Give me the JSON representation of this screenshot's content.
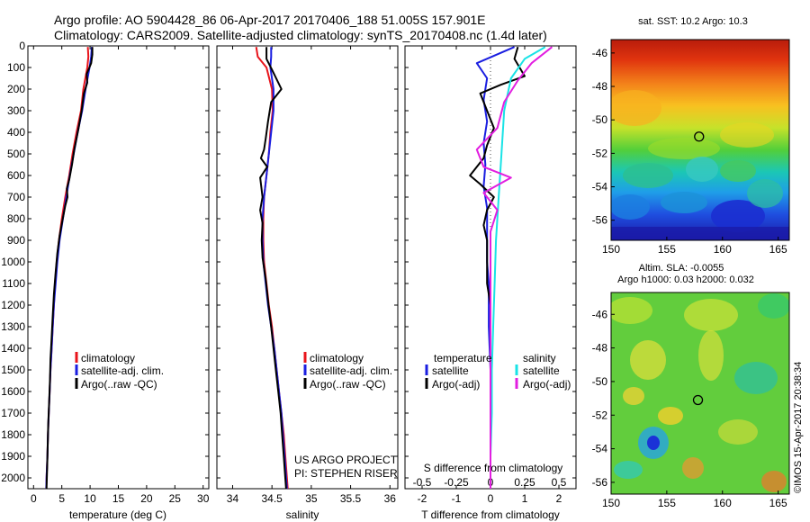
{
  "header": {
    "line1": "Argo profile: AO 5904428_86 06-Apr-2017 20170406_188 51.005S 157.901E",
    "line2": "Climatology: CARS2009. Satellite-adjusted climatology: synTS_20170408.nc (1.4d later)"
  },
  "colors": {
    "climatology": "#e8141b",
    "satellite": "#1a1ee0",
    "argo": "#000000",
    "salinity_satellite": "#19e3e6",
    "salinity_argo": "#e21ee0",
    "marker_circle": "#000000"
  },
  "chart_data": [
    {
      "type": "line",
      "panel": "temperature",
      "xlabel": "temperature (deg C)",
      "ylabel": "",
      "xlim": [
        -1,
        31
      ],
      "ylim": [
        2050,
        0
      ],
      "xticks": [
        "0",
        "5",
        "10",
        "15",
        "20",
        "25",
        "30"
      ],
      "yticks": [
        "0",
        "100",
        "200",
        "300",
        "400",
        "500",
        "600",
        "700",
        "800",
        "900",
        "1000",
        "1100",
        "1200",
        "1300",
        "1400",
        "1500",
        "1600",
        "1700",
        "1800",
        "1900",
        "2000"
      ],
      "legend": [
        "climatology",
        "satellite-adj. clim.",
        "Argo(..raw -QC)"
      ],
      "series": [
        {
          "name": "climatology",
          "color": "#e8141b",
          "points": [
            [
              9.6,
              5
            ],
            [
              9.7,
              50
            ],
            [
              9.5,
              100
            ],
            [
              8.8,
              200
            ],
            [
              8.4,
              300
            ],
            [
              7.6,
              400
            ],
            [
              6.9,
              500
            ],
            [
              6.3,
              600
            ],
            [
              5.6,
              700
            ],
            [
              5.0,
              800
            ],
            [
              4.5,
              900
            ],
            [
              4.1,
              1000
            ],
            [
              3.8,
              1100
            ],
            [
              3.6,
              1200
            ],
            [
              3.4,
              1300
            ],
            [
              3.2,
              1400
            ],
            [
              3.0,
              1500
            ],
            [
              2.85,
              1600
            ],
            [
              2.7,
              1700
            ],
            [
              2.55,
              1800
            ],
            [
              2.45,
              1900
            ],
            [
              2.3,
              2000
            ],
            [
              2.25,
              2050
            ]
          ]
        },
        {
          "name": "satellite-adj. clim.",
          "color": "#1a1ee0",
          "points": [
            [
              10.3,
              5
            ],
            [
              10.2,
              50
            ],
            [
              9.9,
              100
            ],
            [
              9.2,
              200
            ],
            [
              8.6,
              300
            ],
            [
              7.8,
              400
            ],
            [
              7.1,
              500
            ],
            [
              6.4,
              600
            ],
            [
              5.8,
              700
            ],
            [
              5.2,
              800
            ],
            [
              4.6,
              900
            ],
            [
              4.2,
              1000
            ],
            [
              3.9,
              1100
            ],
            [
              3.6,
              1200
            ],
            [
              3.4,
              1300
            ],
            [
              3.2,
              1400
            ],
            [
              3.0,
              1500
            ],
            [
              2.85,
              1600
            ],
            [
              2.7,
              1700
            ],
            [
              2.55,
              1800
            ],
            [
              2.45,
              1900
            ],
            [
              2.3,
              2000
            ],
            [
              2.25,
              2050
            ]
          ]
        },
        {
          "name": "Argo(..raw -QC)",
          "color": "#000000",
          "points": [
            [
              10.4,
              5
            ],
            [
              10.4,
              40
            ],
            [
              10.2,
              80
            ],
            [
              9.4,
              130
            ],
            [
              9.5,
              170
            ],
            [
              8.9,
              220
            ],
            [
              8.5,
              300
            ],
            [
              7.9,
              390
            ],
            [
              7.2,
              480
            ],
            [
              6.8,
              550
            ],
            [
              6.3,
              620
            ],
            [
              5.9,
              660
            ],
            [
              6.0,
              700
            ],
            [
              5.6,
              740
            ],
            [
              5.1,
              810
            ],
            [
              4.6,
              880
            ],
            [
              4.2,
              960
            ],
            [
              3.9,
              1050
            ],
            [
              3.6,
              1150
            ],
            [
              3.4,
              1250
            ],
            [
              3.2,
              1350
            ],
            [
              3.0,
              1450
            ],
            [
              2.9,
              1550
            ],
            [
              2.75,
              1650
            ],
            [
              2.6,
              1750
            ],
            [
              2.5,
              1850
            ],
            [
              2.4,
              1950
            ],
            [
              2.3,
              2050
            ]
          ]
        }
      ]
    },
    {
      "type": "line",
      "panel": "salinity",
      "xlabel": "salinity",
      "ylabel": "",
      "xlim": [
        33.8,
        36.1
      ],
      "ylim": [
        2050,
        0
      ],
      "xticks": [
        "34",
        "34.5",
        "35",
        "35.5",
        "36"
      ],
      "legend": [
        "climatology",
        "satellite-adj. clim.",
        "Argo(..raw -QC)"
      ],
      "annotation": [
        "US ARGO PROJECT",
        "PI: STEPHEN RISER"
      ],
      "series": [
        {
          "name": "climatology",
          "color": "#e8141b",
          "points": [
            [
              34.3,
              5
            ],
            [
              34.32,
              50
            ],
            [
              34.43,
              100
            ],
            [
              34.5,
              200
            ],
            [
              34.51,
              300
            ],
            [
              34.48,
              400
            ],
            [
              34.46,
              500
            ],
            [
              34.43,
              600
            ],
            [
              34.4,
              700
            ],
            [
              34.39,
              800
            ],
            [
              34.39,
              900
            ],
            [
              34.4,
              1000
            ],
            [
              34.43,
              1100
            ],
            [
              34.46,
              1200
            ],
            [
              34.5,
              1300
            ],
            [
              34.53,
              1400
            ],
            [
              34.56,
              1500
            ],
            [
              34.59,
              1600
            ],
            [
              34.62,
              1700
            ],
            [
              34.65,
              1800
            ],
            [
              34.67,
              1900
            ],
            [
              34.69,
              2000
            ],
            [
              34.7,
              2050
            ]
          ]
        },
        {
          "name": "satellite-adj. clim.",
          "color": "#1a1ee0",
          "points": [
            [
              34.49,
              5
            ],
            [
              34.49,
              50
            ],
            [
              34.48,
              100
            ],
            [
              34.52,
              200
            ],
            [
              34.52,
              300
            ],
            [
              34.49,
              400
            ],
            [
              34.46,
              500
            ],
            [
              34.43,
              600
            ],
            [
              34.4,
              700
            ],
            [
              34.38,
              800
            ],
            [
              34.38,
              900
            ],
            [
              34.39,
              1000
            ],
            [
              34.42,
              1100
            ],
            [
              34.45,
              1200
            ],
            [
              34.49,
              1300
            ],
            [
              34.53,
              1400
            ],
            [
              34.56,
              1500
            ],
            [
              34.59,
              1600
            ],
            [
              34.62,
              1700
            ],
            [
              34.64,
              1800
            ],
            [
              34.66,
              1900
            ],
            [
              34.68,
              2000
            ],
            [
              34.69,
              2050
            ]
          ]
        },
        {
          "name": "Argo(..raw -QC)",
          "color": "#000000",
          "points": [
            [
              34.43,
              5
            ],
            [
              34.43,
              60
            ],
            [
              34.5,
              110
            ],
            [
              34.62,
              200
            ],
            [
              34.49,
              260
            ],
            [
              34.45,
              350
            ],
            [
              34.42,
              430
            ],
            [
              34.4,
              480
            ],
            [
              34.36,
              520
            ],
            [
              34.44,
              560
            ],
            [
              34.35,
              610
            ],
            [
              34.38,
              700
            ],
            [
              34.35,
              760
            ],
            [
              34.38,
              820
            ],
            [
              34.37,
              900
            ],
            [
              34.38,
              980
            ],
            [
              34.42,
              1080
            ],
            [
              34.45,
              1180
            ],
            [
              34.49,
              1300
            ],
            [
              34.52,
              1400
            ],
            [
              34.55,
              1500
            ],
            [
              34.58,
              1600
            ],
            [
              34.61,
              1700
            ],
            [
              34.63,
              1800
            ],
            [
              34.65,
              1900
            ],
            [
              34.67,
              2000
            ],
            [
              34.68,
              2050
            ]
          ]
        }
      ]
    },
    {
      "type": "line",
      "panel": "differences",
      "xlabel": "T difference from climatology",
      "top_xlabel": "S difference from climatology",
      "xlim": [
        -2.5,
        2.5
      ],
      "ylim": [
        2050,
        0
      ],
      "xticks": [
        "-2",
        "-1",
        "0",
        "1",
        "2"
      ],
      "top_xticks": [
        "-0.5",
        "-0.25",
        "0",
        "0.25",
        "0.5"
      ],
      "legend_titles": [
        "temperature",
        "salinity"
      ],
      "legend": [
        "satellite",
        "Argo(-adj)",
        "satellite",
        "Argo(-adj)"
      ],
      "series": [
        {
          "name": "temperature satellite",
          "color": "#1a1ee0",
          "points": [
            [
              0.7,
              5
            ],
            [
              -0.4,
              80
            ],
            [
              -0.1,
              150
            ],
            [
              -0.2,
              250
            ],
            [
              -0.1,
              350
            ],
            [
              -0.2,
              450
            ],
            [
              -0.15,
              550
            ],
            [
              -0.2,
              650
            ],
            [
              -0.1,
              750
            ],
            [
              -0.1,
              900
            ],
            [
              -0.1,
              1000
            ],
            [
              -0.05,
              1100
            ],
            [
              -0.05,
              1300
            ],
            [
              0,
              1500
            ],
            [
              0,
              1700
            ],
            [
              0,
              1900
            ],
            [
              0,
              2050
            ]
          ]
        },
        {
          "name": "temperature Argo(-adj)",
          "color": "#000000",
          "points": [
            [
              0.8,
              5
            ],
            [
              0.7,
              60
            ],
            [
              1.0,
              140
            ],
            [
              0.3,
              180
            ],
            [
              -0.3,
              220
            ],
            [
              -0.1,
              300
            ],
            [
              0.1,
              380
            ],
            [
              -0.1,
              460
            ],
            [
              -0.2,
              520
            ],
            [
              -0.6,
              600
            ],
            [
              -0.3,
              640
            ],
            [
              0.1,
              700
            ],
            [
              -0.1,
              760
            ],
            [
              -0.2,
              830
            ],
            [
              -0.1,
              900
            ],
            [
              -0.1,
              1000
            ],
            [
              -0.1,
              1100
            ],
            [
              0,
              1200
            ],
            [
              0,
              1400
            ],
            [
              0,
              1600
            ],
            [
              0,
              1800
            ],
            [
              0,
              2050
            ]
          ]
        },
        {
          "name": "salinity satellite",
          "color": "#19e3e6",
          "points": [
            [
              0.4,
              5
            ],
            [
              0.25,
              60
            ],
            [
              0.15,
              150
            ],
            [
              0.1,
              300
            ],
            [
              0.08,
              500
            ],
            [
              0.06,
              700
            ],
            [
              0.04,
              900
            ],
            [
              0.03,
              1100
            ],
            [
              0.02,
              1300
            ],
            [
              0.01,
              1500
            ],
            [
              0.01,
              1700
            ],
            [
              0,
              1900
            ],
            [
              0,
              2050
            ]
          ]
        },
        {
          "name": "salinity Argo(-adj)",
          "color": "#e21ee0",
          "points": [
            [
              0.45,
              5
            ],
            [
              0.3,
              80
            ],
            [
              0.2,
              160
            ],
            [
              0.1,
              260
            ],
            [
              0.05,
              380
            ],
            [
              -0.1,
              480
            ],
            [
              -0.05,
              560
            ],
            [
              0.15,
              610
            ],
            [
              -0.05,
              680
            ],
            [
              0.05,
              760
            ],
            [
              0,
              860
            ],
            [
              0,
              1000
            ],
            [
              0,
              1200
            ],
            [
              0,
              1400
            ],
            [
              0,
              1600
            ],
            [
              0,
              1800
            ],
            [
              0,
              2050
            ]
          ]
        }
      ]
    },
    {
      "type": "heatmap",
      "panel": "sst-map",
      "title": "sat. SST: 10.2  Argo: 10.3",
      "xlim": [
        150,
        166
      ],
      "ylim": [
        -57.2,
        -45.2
      ],
      "xticks": [
        "150",
        "155",
        "160",
        "165"
      ],
      "yticks": [
        "-46",
        "-48",
        "-50",
        "-52",
        "-54",
        "-56"
      ],
      "marker": {
        "lon": 157.9,
        "lat": -51.0
      }
    },
    {
      "type": "heatmap",
      "panel": "sla-map",
      "title": "Altim. SLA: -0.0055",
      "subtitle": "Argo h1000: 0.03 h2000: 0.032",
      "xlim": [
        150,
        166
      ],
      "ylim": [
        -56.7,
        -44.7
      ],
      "xticks": [
        "150",
        "155",
        "160",
        "165"
      ],
      "yticks": [
        "-46",
        "-48",
        "-50",
        "-52",
        "-54",
        "-56"
      ],
      "marker": {
        "lon": 157.8,
        "lat": -51.1
      },
      "side_label": "©IMOS 15-Apr-2017 20:38:34"
    }
  ]
}
